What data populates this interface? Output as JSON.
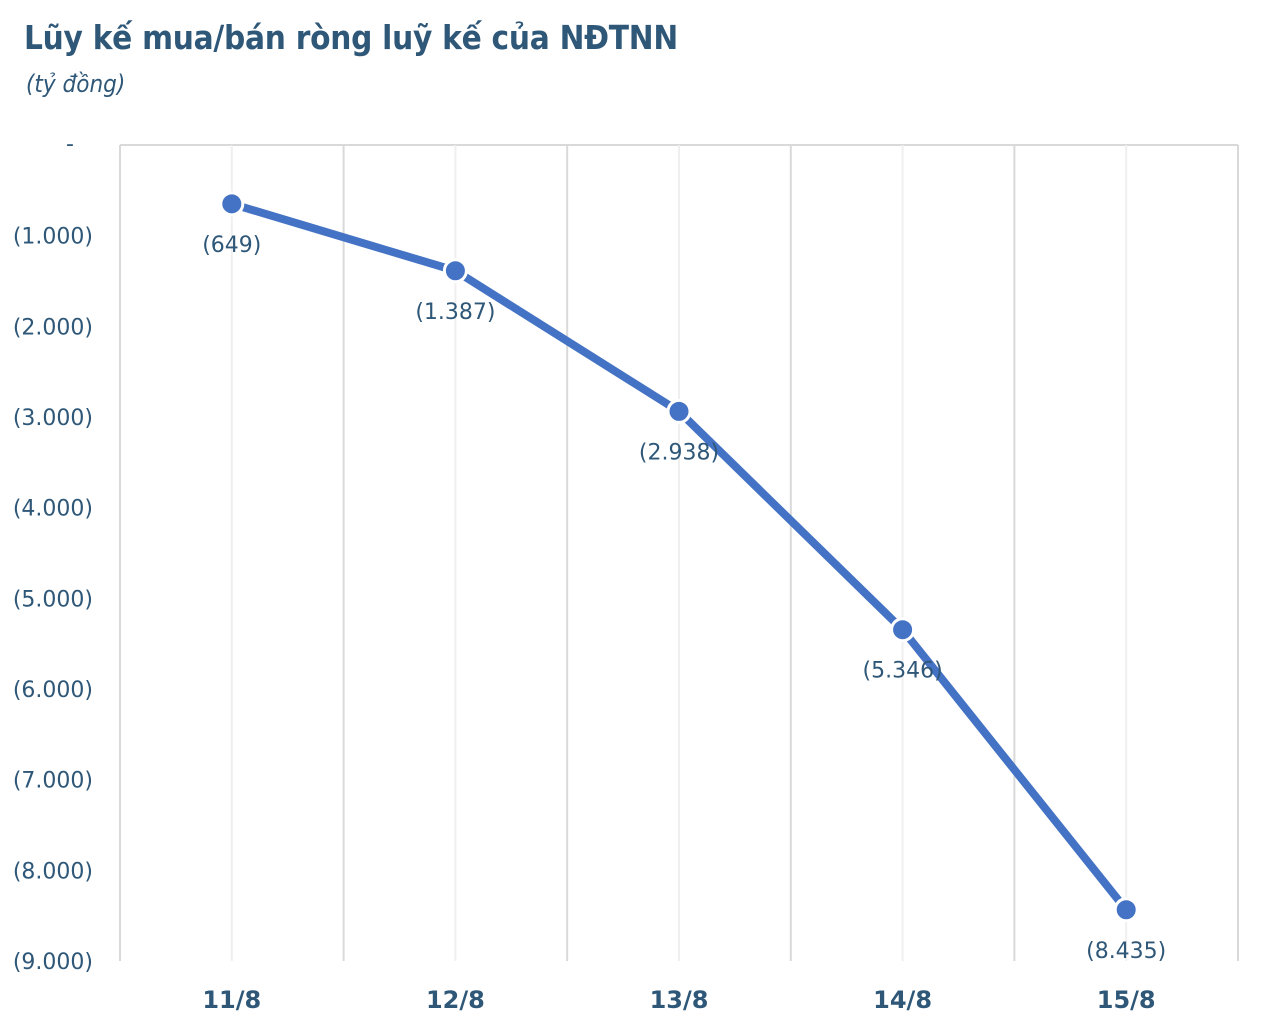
{
  "header": {
    "title": "Lũy kế mua/bán ròng luỹ kế của NĐTNN",
    "subtitle": "(tỷ đồng)"
  },
  "colors": {
    "line": "#4472c4",
    "text": "#2e5778",
    "grid_major": "#d9d9d9",
    "grid_minor": "#efefef"
  },
  "chart_data": {
    "type": "line",
    "title": "Lũy kế mua/bán ròng luỹ kế của NĐTNN",
    "subtitle": "(tỷ đồng)",
    "xlabel": "",
    "ylabel": "tỷ đồng",
    "categories": [
      "11/8",
      "12/8",
      "13/8",
      "14/8",
      "15/8"
    ],
    "series": [
      {
        "name": "Lũy kế mua/bán ròng",
        "values": [
          -649,
          -1387,
          -2938,
          -5346,
          -8435
        ]
      }
    ],
    "data_labels": [
      "(649)",
      "(1.387)",
      "(2.938)",
      "(5.346)",
      "(8.435)"
    ],
    "ylim": [
      -9000,
      0
    ],
    "yticks": [
      0,
      -1000,
      -2000,
      -3000,
      -4000,
      -5000,
      -6000,
      -7000,
      -8000,
      -9000
    ],
    "ytick_labels": [
      "-",
      "(1.000)",
      "(2.000)",
      "(3.000)",
      "(4.000)",
      "(5.000)",
      "(6.000)",
      "(7.000)",
      "(8.000)",
      "(9.000)"
    ],
    "grid": "vertical",
    "legend": "none"
  }
}
